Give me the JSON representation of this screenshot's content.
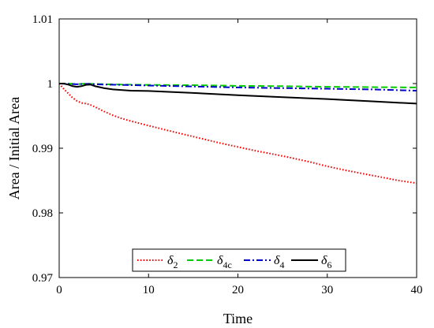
{
  "chart_data": {
    "type": "line",
    "title": "",
    "xlabel": "Time",
    "ylabel": "Area / Initial Area",
    "xlim": [
      0,
      40
    ],
    "ylim": [
      0.97,
      1.01
    ],
    "xticks": [
      0,
      10,
      20,
      30,
      40
    ],
    "xtick_labels": [
      "0",
      "10",
      "20",
      "30",
      "40"
    ],
    "yticks": [
      0.97,
      0.98,
      0.99,
      1.0,
      1.01
    ],
    "ytick_labels": [
      "0.97",
      "0.98",
      "0.99",
      "1",
      "1.01"
    ],
    "grid": false,
    "legend_position": "bottom-center",
    "series": [
      {
        "name": "δ2",
        "legend_symbol": "δ",
        "legend_subscript": "2",
        "color": "#ff0000",
        "dash": "dotted",
        "x": [
          0,
          0.5,
          1,
          1.5,
          2,
          2.5,
          3,
          3.5,
          4,
          5,
          6,
          7,
          8,
          10,
          12,
          15,
          18,
          20,
          22,
          25,
          28,
          30,
          32,
          35,
          38,
          40
        ],
        "y": [
          1.0,
          0.9992,
          0.9985,
          0.9978,
          0.9973,
          0.997,
          0.9969,
          0.9967,
          0.9964,
          0.9957,
          0.9951,
          0.9946,
          0.9942,
          0.9935,
          0.9928,
          0.9918,
          0.9908,
          0.9902,
          0.9896,
          0.9888,
          0.9879,
          0.9872,
          0.9866,
          0.9858,
          0.985,
          0.9846
        ]
      },
      {
        "name": "δ4c",
        "legend_symbol": "δ",
        "legend_subscript": "4c",
        "color": "#00cc00",
        "dash": "dashed",
        "x": [
          0,
          1,
          2,
          3,
          4,
          5,
          7,
          10,
          15,
          20,
          25,
          30,
          35,
          40
        ],
        "y": [
          1.0,
          1.0,
          0.9999,
          1.0,
          0.99995,
          0.9999,
          0.99985,
          0.9998,
          0.99975,
          0.99965,
          0.9996,
          0.9995,
          0.99945,
          0.9994
        ]
      },
      {
        "name": "δ4",
        "legend_symbol": "δ",
        "legend_subscript": "4",
        "color": "#0000cc",
        "dash": "dashdot",
        "x": [
          0,
          1,
          2,
          3,
          4,
          5,
          7,
          10,
          15,
          20,
          25,
          30,
          35,
          40
        ],
        "y": [
          1.0,
          0.99995,
          0.9999,
          0.99995,
          0.9999,
          0.99985,
          0.9998,
          0.9997,
          0.99955,
          0.9994,
          0.9993,
          0.9992,
          0.9991,
          0.9989
        ]
      },
      {
        "name": "δ6",
        "legend_symbol": "δ",
        "legend_subscript": "6",
        "color": "#000000",
        "dash": "solid",
        "x": [
          0,
          0.5,
          1,
          1.5,
          2,
          2.5,
          3,
          3.5,
          4,
          5,
          6,
          8,
          10,
          15,
          20,
          25,
          30,
          35,
          40
        ],
        "y": [
          1.0,
          1.0,
          0.99985,
          0.9996,
          0.9995,
          0.9996,
          0.9998,
          0.99985,
          0.9996,
          0.9993,
          0.9991,
          0.9989,
          0.99885,
          0.99855,
          0.9982,
          0.9979,
          0.9976,
          0.99725,
          0.9969
        ]
      }
    ]
  }
}
